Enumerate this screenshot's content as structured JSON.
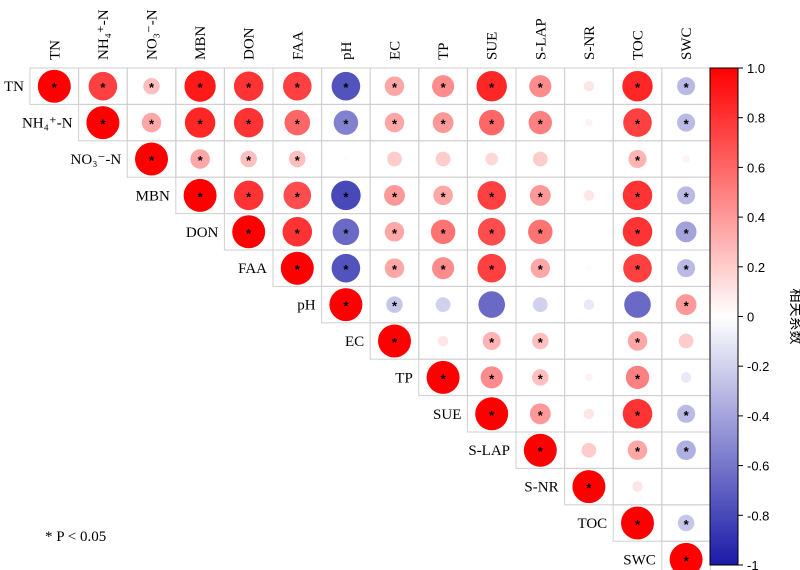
{
  "chart_data": {
    "type": "heatmap",
    "variables": [
      "TN",
      "NH4+-N",
      "NO3−-N",
      "MBN",
      "DON",
      "FAA",
      "pH",
      "EC",
      "TP",
      "SUE",
      "S-LAP",
      "S-NR",
      "TOC",
      "SWC"
    ],
    "column_labels": [
      "TN",
      "NH₄⁺-N",
      "NO₃⁻-N",
      "MBN",
      "DON",
      "FAA",
      "pH",
      "EC",
      "TP",
      "SUE",
      "S-LAP",
      "S-NR",
      "TOC",
      "SWC"
    ],
    "row_labels": [
      "TN",
      "NH₄⁺-N",
      "NO₃⁻-N",
      "MBN",
      "DON",
      "FAA",
      "pH",
      "EC",
      "TP",
      "SUE",
      "S-LAP",
      "S-NR",
      "TOC",
      "SWC"
    ],
    "correlations": [
      [
        1,
        0.75,
        0.25,
        0.9,
        0.8,
        0.75,
        -0.75,
        0.35,
        0.45,
        0.85,
        0.45,
        0.1,
        0.85,
        -0.3
      ],
      [
        null,
        1,
        0.35,
        0.85,
        0.8,
        0.6,
        -0.55,
        0.35,
        0.4,
        0.6,
        0.5,
        0.05,
        0.75,
        -0.3
      ],
      [
        null,
        null,
        1,
        0.35,
        0.25,
        0.25,
        0.02,
        0.2,
        0.2,
        0.15,
        0.2,
        null,
        0.3,
        0.05
      ],
      [
        null,
        null,
        null,
        1,
        0.8,
        0.7,
        -0.8,
        0.4,
        0.35,
        0.75,
        0.4,
        0.1,
        0.8,
        -0.3
      ],
      [
        null,
        null,
        null,
        null,
        1,
        0.8,
        -0.65,
        0.35,
        0.55,
        0.7,
        0.55,
        null,
        0.8,
        -0.4
      ],
      [
        null,
        null,
        null,
        null,
        null,
        1,
        -0.75,
        0.35,
        0.45,
        0.75,
        0.35,
        0.02,
        0.75,
        -0.3
      ],
      [
        null,
        null,
        null,
        null,
        null,
        null,
        1,
        -0.25,
        -0.2,
        -0.65,
        -0.2,
        -0.1,
        -0.65,
        0.4
      ],
      [
        null,
        null,
        null,
        null,
        null,
        null,
        null,
        1,
        0.1,
        0.3,
        0.25,
        null,
        0.35,
        0.2
      ],
      [
        null,
        null,
        null,
        null,
        null,
        null,
        null,
        null,
        1,
        0.45,
        0.25,
        0.05,
        0.5,
        -0.1
      ],
      [
        null,
        null,
        null,
        null,
        null,
        null,
        null,
        null,
        null,
        1,
        0.4,
        0.1,
        0.8,
        -0.3
      ],
      [
        null,
        null,
        null,
        null,
        null,
        null,
        null,
        null,
        null,
        null,
        1,
        0.2,
        0.35,
        -0.35
      ],
      [
        null,
        null,
        null,
        null,
        null,
        null,
        null,
        null,
        null,
        null,
        null,
        1,
        0.1,
        null
      ],
      [
        null,
        null,
        null,
        null,
        null,
        null,
        null,
        null,
        null,
        null,
        null,
        null,
        1,
        -0.25
      ],
      [
        null,
        null,
        null,
        null,
        null,
        null,
        null,
        null,
        null,
        null,
        null,
        null,
        null,
        1
      ]
    ],
    "significant": [
      [
        1,
        1,
        1,
        1,
        1,
        1,
        1,
        1,
        1,
        1,
        1,
        0,
        1,
        1
      ],
      [
        0,
        1,
        1,
        1,
        1,
        1,
        1,
        1,
        1,
        1,
        1,
        0,
        1,
        1
      ],
      [
        0,
        0,
        1,
        1,
        1,
        1,
        0,
        0,
        0,
        0,
        0,
        0,
        1,
        0
      ],
      [
        0,
        0,
        0,
        1,
        1,
        1,
        1,
        1,
        1,
        1,
        1,
        0,
        1,
        1
      ],
      [
        0,
        0,
        0,
        0,
        1,
        1,
        1,
        1,
        1,
        1,
        1,
        0,
        1,
        1
      ],
      [
        0,
        0,
        0,
        0,
        0,
        1,
        1,
        1,
        1,
        1,
        1,
        0,
        1,
        1
      ],
      [
        0,
        0,
        0,
        0,
        0,
        0,
        1,
        1,
        0,
        0,
        0,
        0,
        0,
        1
      ],
      [
        0,
        0,
        0,
        0,
        0,
        0,
        0,
        1,
        0,
        1,
        1,
        0,
        1,
        0
      ],
      [
        0,
        0,
        0,
        0,
        0,
        0,
        0,
        0,
        1,
        1,
        1,
        0,
        1,
        0
      ],
      [
        0,
        0,
        0,
        0,
        0,
        0,
        0,
        0,
        0,
        1,
        1,
        0,
        1,
        1
      ],
      [
        0,
        0,
        0,
        0,
        0,
        0,
        0,
        0,
        0,
        0,
        1,
        0,
        1,
        1
      ],
      [
        0,
        0,
        0,
        0,
        0,
        0,
        0,
        0,
        0,
        0,
        0,
        1,
        0,
        0
      ],
      [
        0,
        0,
        0,
        0,
        0,
        0,
        0,
        0,
        0,
        0,
        0,
        0,
        1,
        1
      ],
      [
        0,
        0,
        0,
        0,
        0,
        0,
        0,
        0,
        0,
        0,
        0,
        0,
        0,
        1
      ]
    ],
    "colorbar": {
      "title": "相关系数",
      "min": -1,
      "max": 1,
      "ticks": [
        "1.0",
        "0.8",
        "0.6",
        "0.4",
        "0.2",
        "0",
        "-0.2",
        "-0.4",
        "-0.6",
        "-0.8",
        "-1"
      ],
      "colors": {
        "negative": "#1a1aa8",
        "neutral": "#ffffff",
        "positive": "#ff0000"
      }
    },
    "star_symbol": "*",
    "note": "* P < 0.05"
  }
}
